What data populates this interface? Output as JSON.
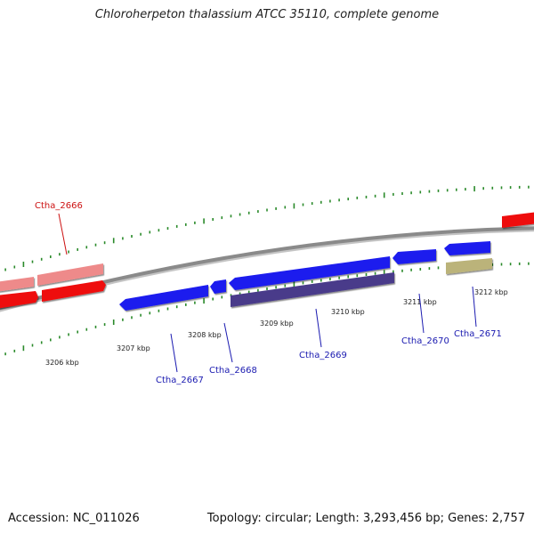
{
  "title": "Chloroherpeton thalassium ATCC 35110, complete genome",
  "footer": {
    "accession": "Accession: NC_011026",
    "summary": "Topology: circular; Length: 3,293,456 bp; Genes: 2,757"
  },
  "colors": {
    "backbone": "#7a7a7a",
    "tick": "#2a8a2a",
    "forward_gene": "#1a1aee",
    "reverse_gene": "#ee1111",
    "forward_label": "#1a1ab0",
    "reverse_label": "#cc1111"
  },
  "scale_labels": [
    "3206 kbp",
    "3207 kbp",
    "3208 kbp",
    "3209 kbp",
    "3210 kbp",
    "3211 kbp",
    "3212 kbp"
  ],
  "gene_labels": [
    {
      "name": "Ctha_2666",
      "strand": "reverse"
    },
    {
      "name": "Ctha_2667",
      "strand": "forward"
    },
    {
      "name": "Ctha_2668",
      "strand": "forward"
    },
    {
      "name": "Ctha_2669",
      "strand": "forward"
    },
    {
      "name": "Ctha_2670",
      "strand": "forward"
    },
    {
      "name": "Ctha_2671",
      "strand": "forward"
    }
  ]
}
